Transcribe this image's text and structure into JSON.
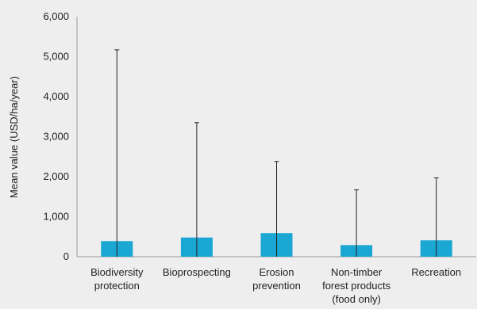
{
  "chart_data": {
    "type": "bar",
    "title": "",
    "xlabel": "",
    "ylabel": "Mean value (USD/ha/year)",
    "ylim": [
      0,
      6000
    ],
    "yticks": [
      0,
      1000,
      2000,
      3000,
      4000,
      5000,
      6000
    ],
    "ytick_labels": [
      "0",
      "1,000",
      "2,000",
      "3,000",
      "4,000",
      "5,000",
      "6,000"
    ],
    "categories": [
      [
        "Biodiversity",
        "protection"
      ],
      [
        "Bioprospecting"
      ],
      [
        "Erosion",
        "prevention"
      ],
      [
        "Non-timber",
        "forest products",
        "(food only)"
      ],
      [
        "Recreation"
      ]
    ],
    "values": [
      390,
      480,
      590,
      290,
      410
    ],
    "error_upper": [
      5170,
      3350,
      2380,
      1670,
      1970
    ],
    "bar_color": "#1aa7d3",
    "grid": false,
    "legend": "none"
  }
}
